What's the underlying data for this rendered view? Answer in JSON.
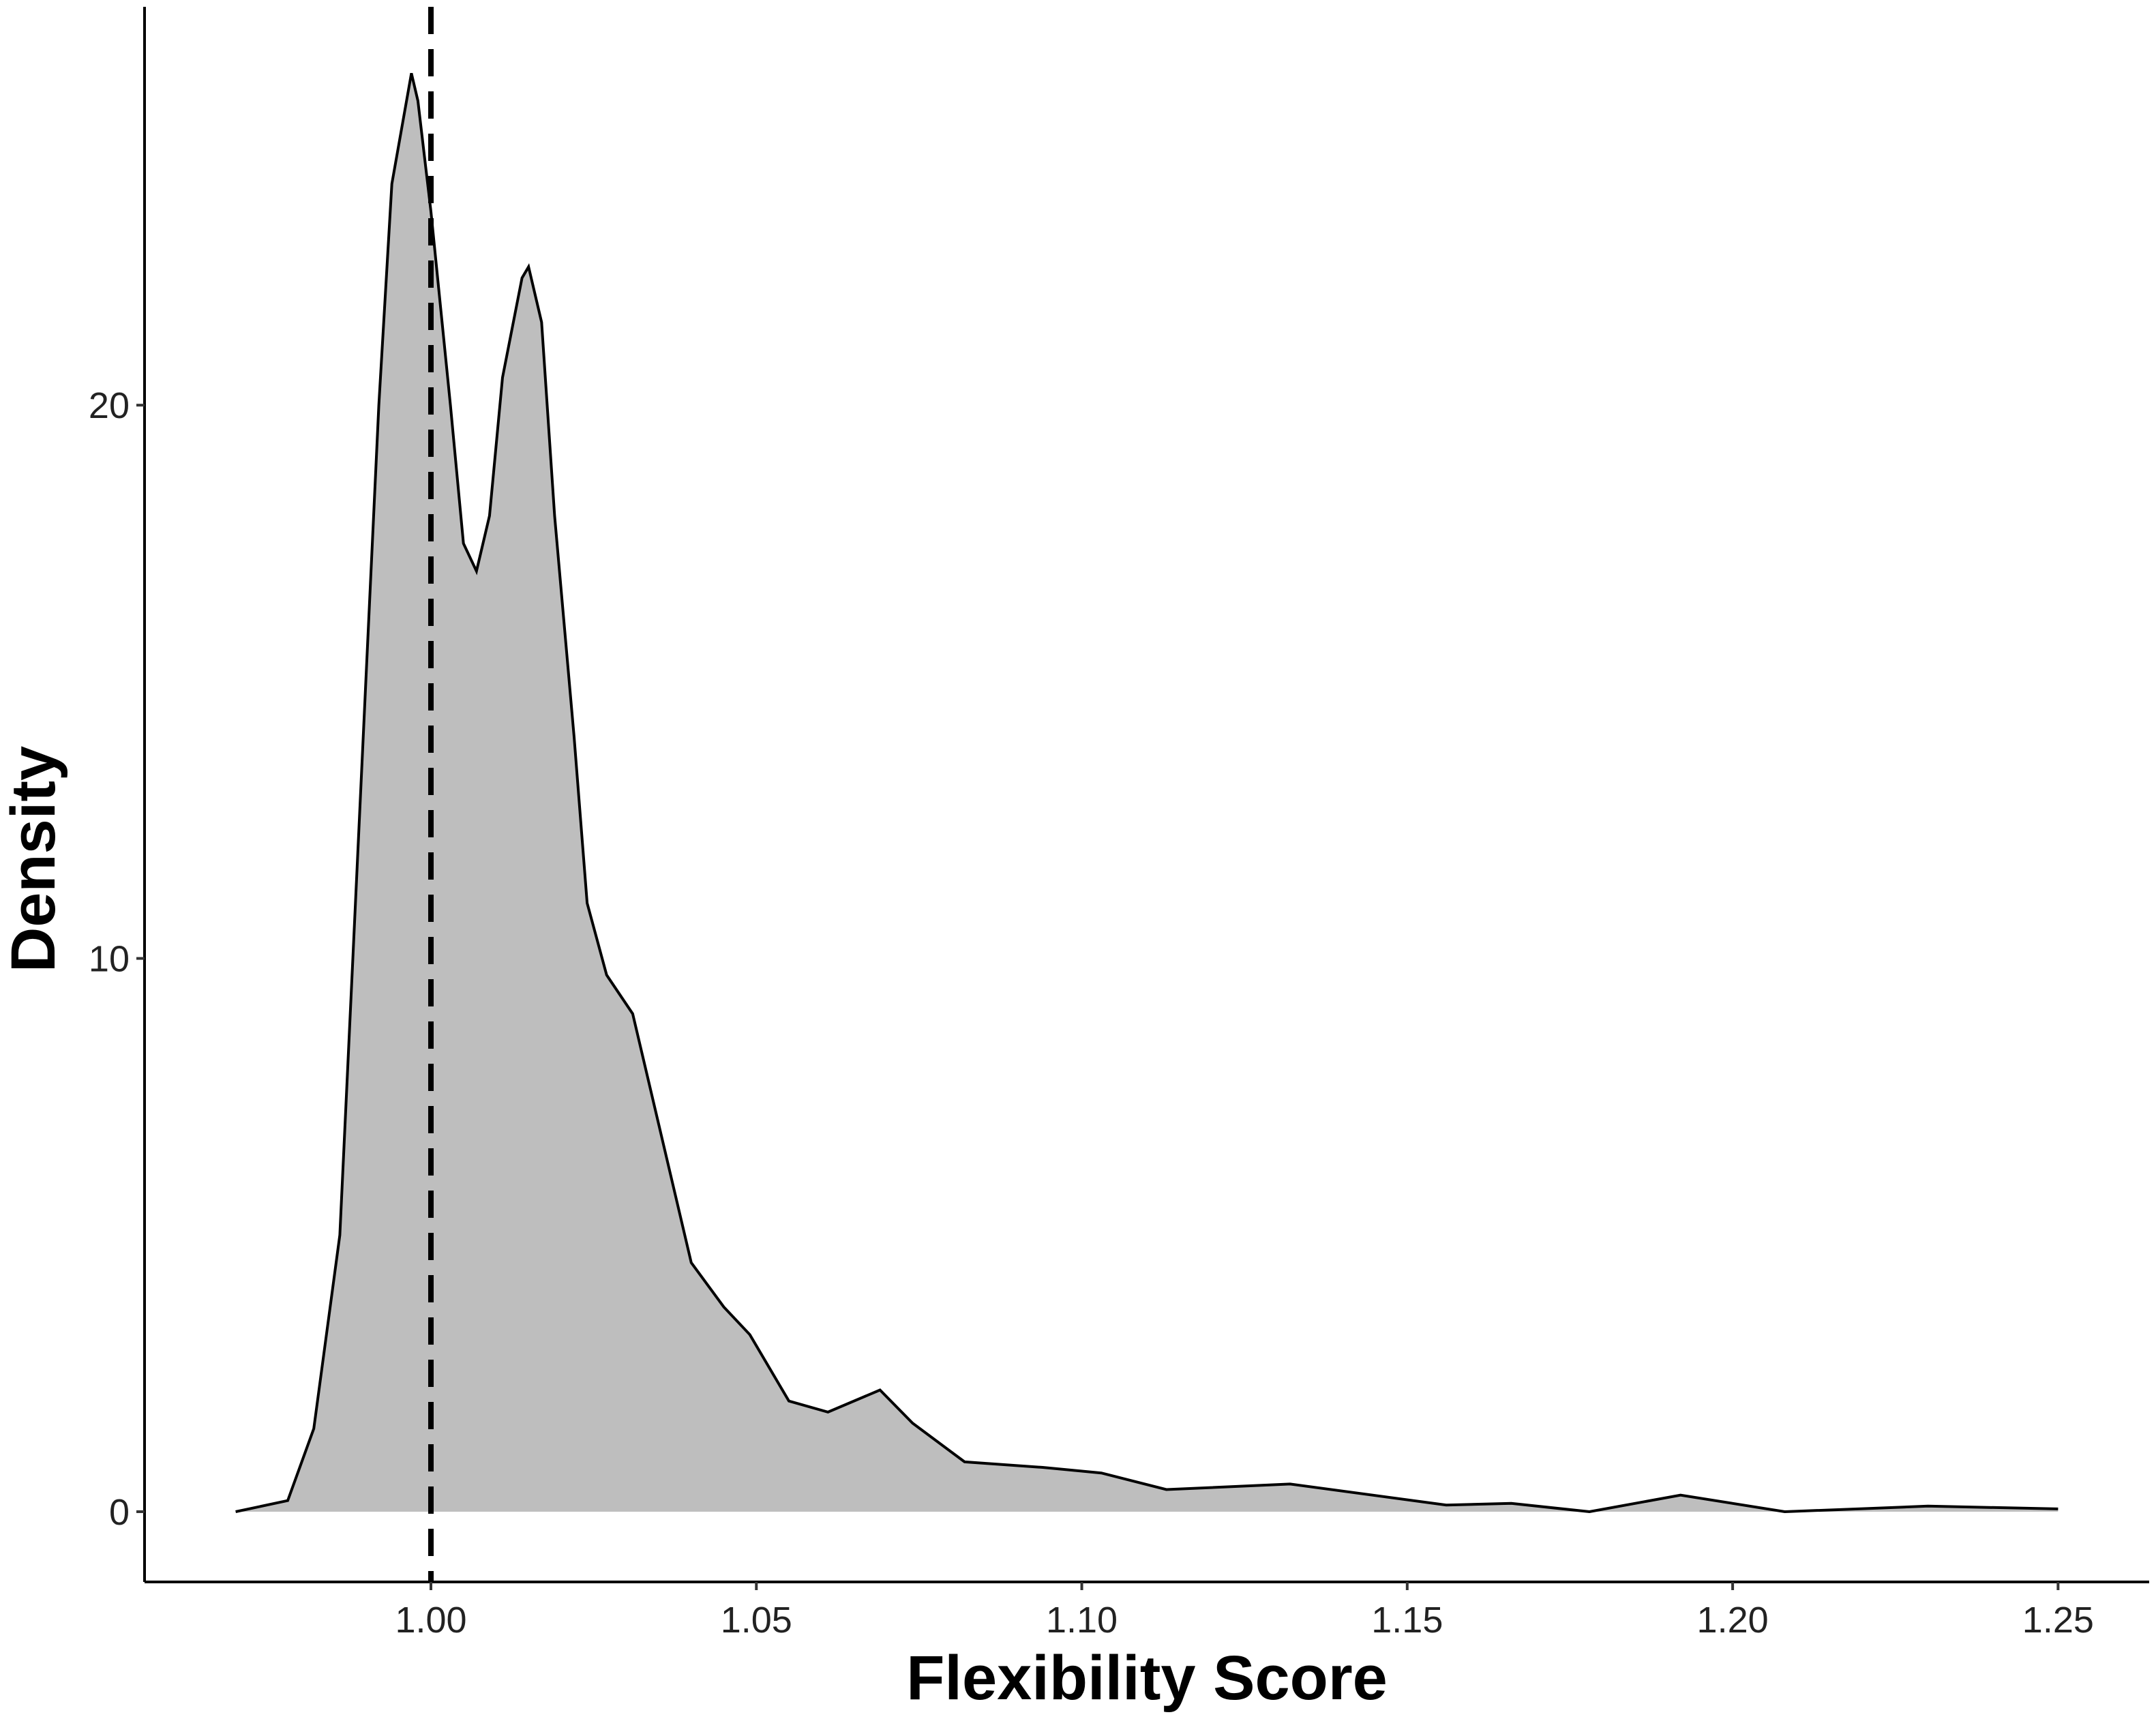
{
  "chart_data": {
    "type": "area",
    "x_label": "Flexibility Score",
    "y_label": "Density",
    "x": [
      0.97,
      0.978,
      0.982,
      0.986,
      0.988,
      0.99,
      0.992,
      0.994,
      0.997,
      0.998,
      1.0,
      1.003,
      1.005,
      1.007,
      1.009,
      1.011,
      1.014,
      1.015,
      1.017,
      1.019,
      1.022,
      1.024,
      1.027,
      1.031,
      1.035,
      1.04,
      1.045,
      1.049,
      1.055,
      1.061,
      1.069,
      1.074,
      1.082,
      1.094,
      1.103,
      1.113,
      1.132,
      1.156,
      1.166,
      1.178,
      1.192,
      1.208,
      1.23,
      1.25
    ],
    "values": [
      0,
      0.2,
      1.5,
      5,
      10,
      15,
      20,
      24,
      26,
      25.5,
      23.5,
      20,
      17.5,
      17,
      18,
      20.5,
      22.3,
      22.5,
      21.5,
      18,
      14,
      11,
      9.7,
      9,
      7,
      4.5,
      3.7,
      3.2,
      2,
      1.8,
      2.2,
      1.6,
      0.9,
      0.8,
      0.7,
      0.4,
      0.5,
      0.12,
      0.15,
      0,
      0.3,
      0,
      0.1,
      0.05
    ],
    "fill_color": "#bebebe",
    "line_color": "#000000",
    "reference_line": 1.0,
    "xlim": [
      0.956,
      1.264
    ],
    "ylim": [
      -1.27,
      27.2
    ],
    "xticks": [
      {
        "value": 1.0,
        "label": "1.00"
      },
      {
        "value": 1.05,
        "label": "1.05"
      },
      {
        "value": 1.1,
        "label": "1.10"
      },
      {
        "value": 1.15,
        "label": "1.15"
      },
      {
        "value": 1.2,
        "label": "1.20"
      },
      {
        "value": 1.25,
        "label": "1.25"
      }
    ],
    "yticks": [
      0,
      10,
      20
    ]
  }
}
